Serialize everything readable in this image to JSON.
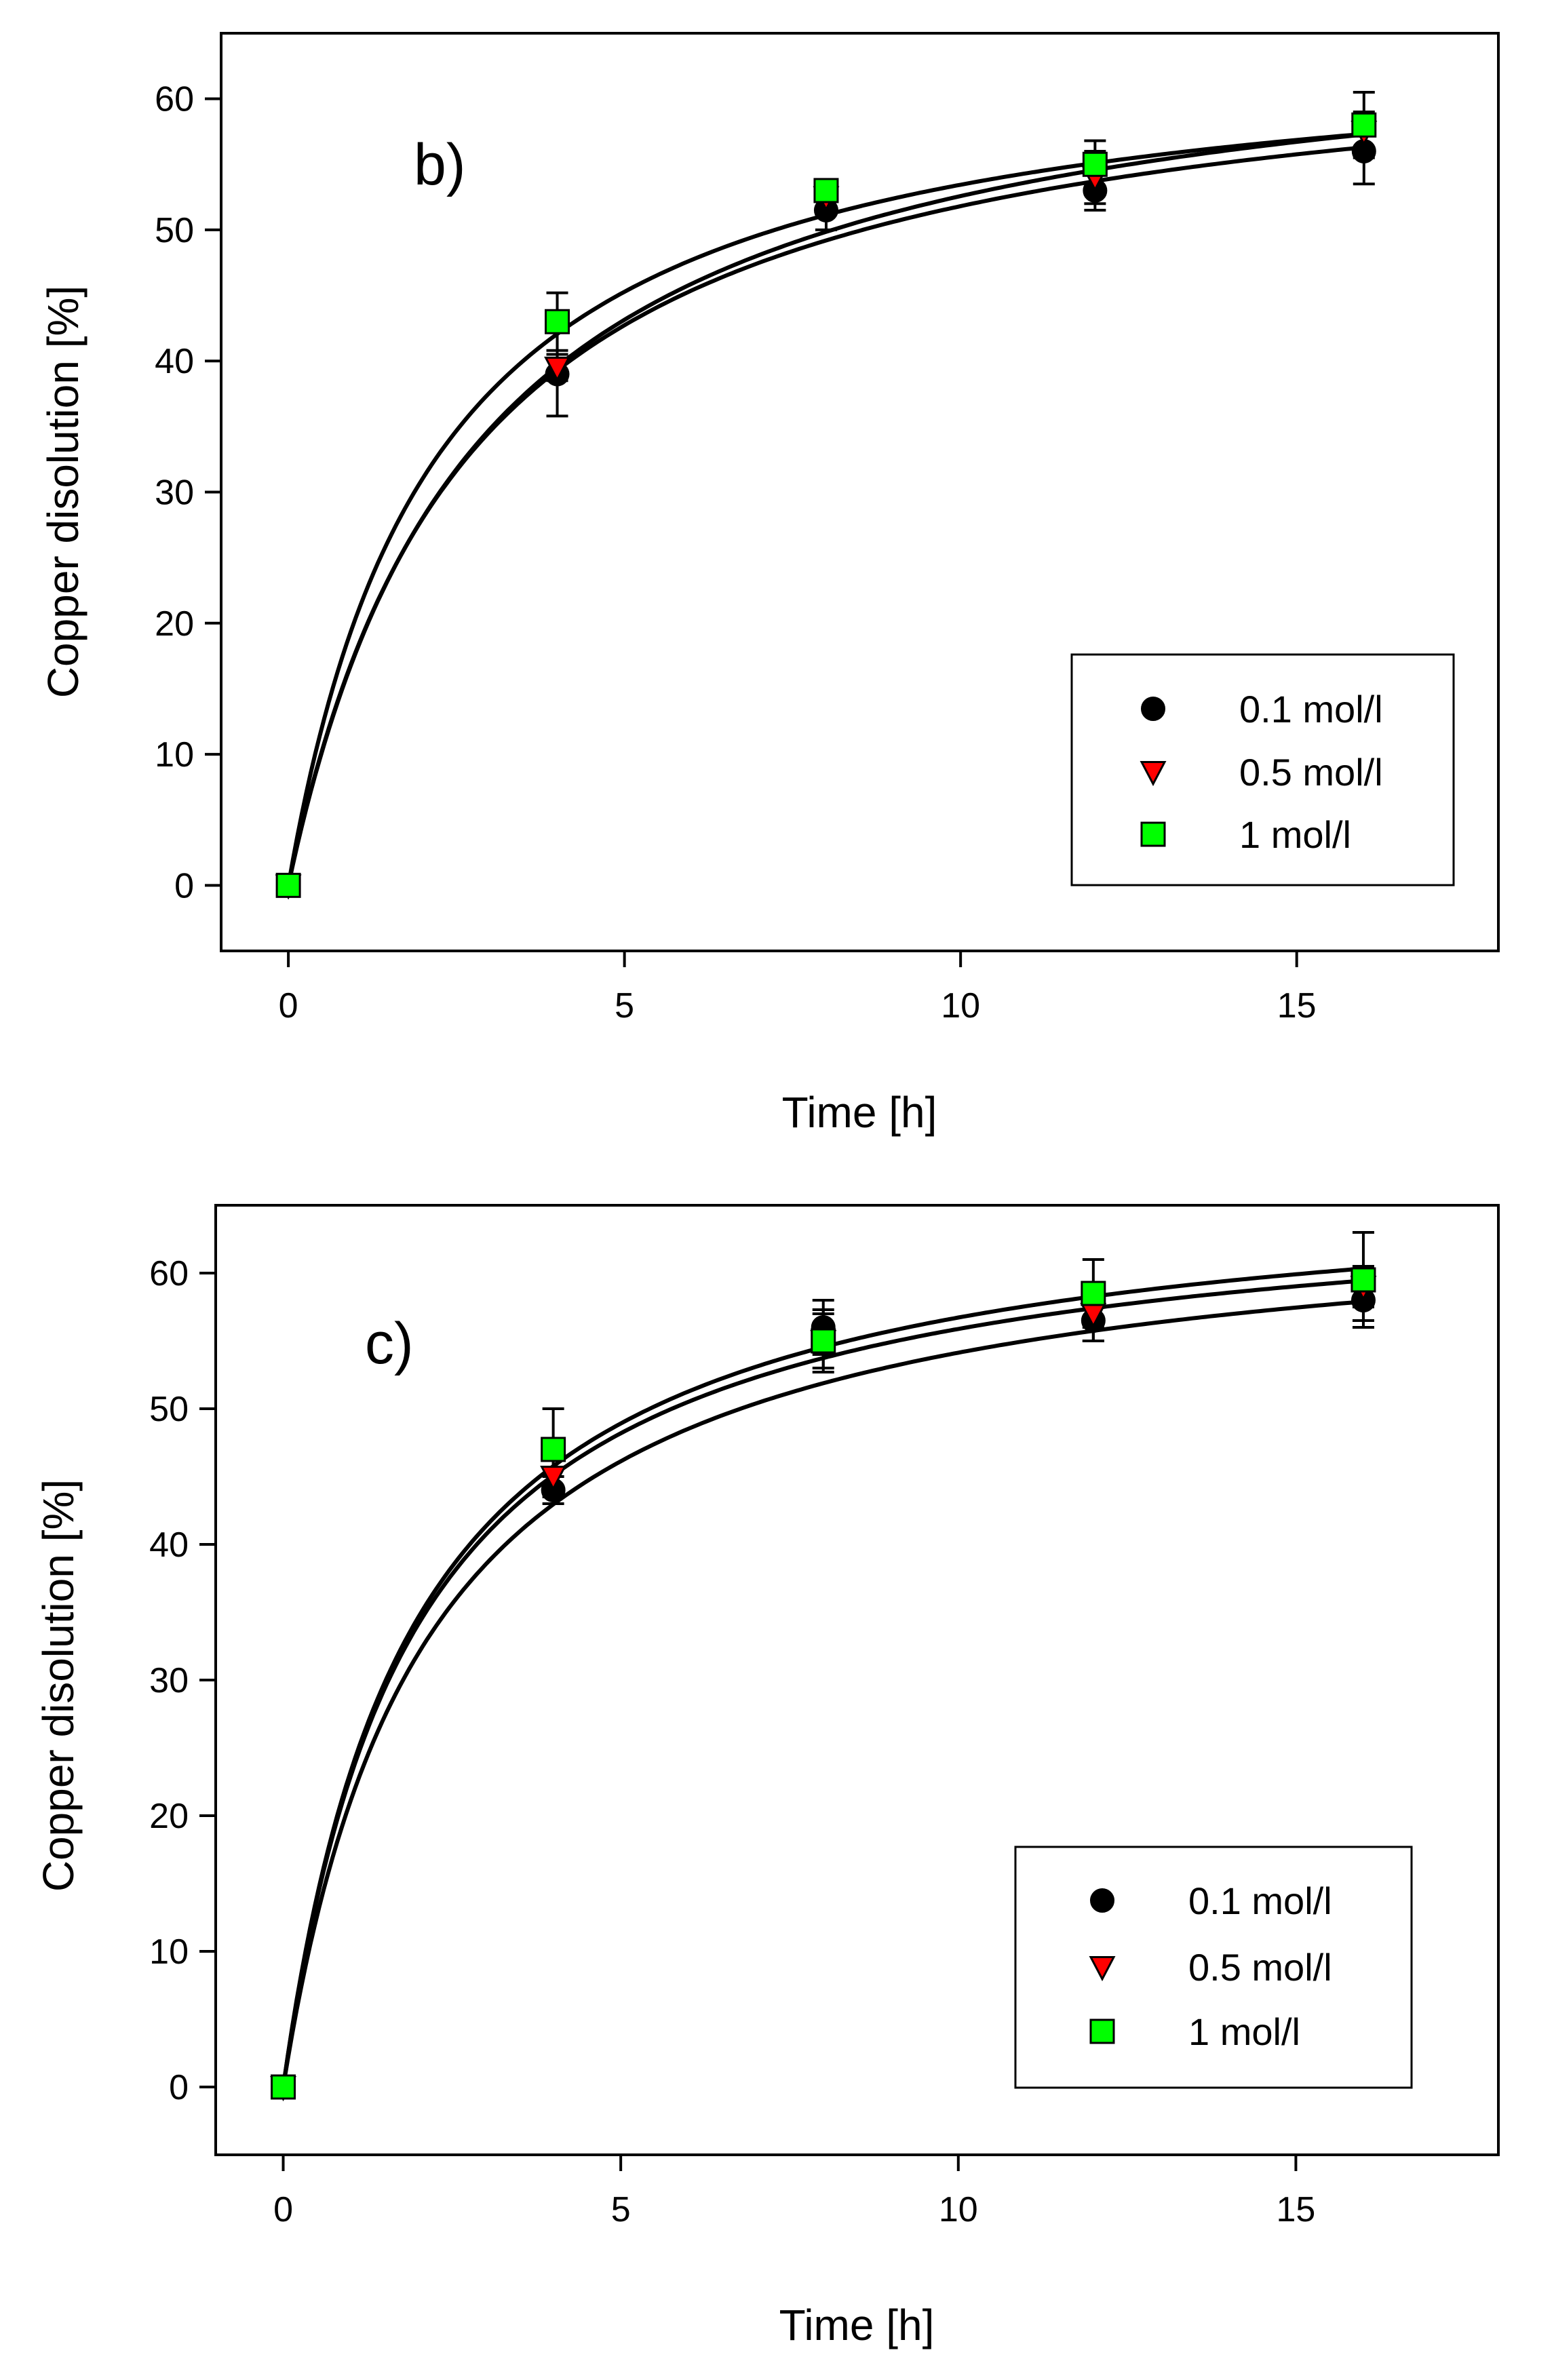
{
  "chart_data": [
    {
      "type": "scatter",
      "panel_label": "b)",
      "xlabel": "Time [h]",
      "ylabel": "Copper disolution [%]",
      "xlim": [
        -1,
        18
      ],
      "ylim": [
        -5,
        65
      ],
      "xticks": [
        0,
        5,
        10,
        15
      ],
      "yticks": [
        0,
        10,
        20,
        30,
        40,
        50,
        60
      ],
      "grid": false,
      "legend_position": "lower-right",
      "series": [
        {
          "name": "0.1 mol/l",
          "marker": "circle",
          "color": "#000000",
          "x": [
            0,
            4,
            8,
            12,
            16
          ],
          "y": [
            0,
            39,
            51.5,
            53,
            56
          ],
          "err": [
            0,
            3.2,
            1.5,
            1.5,
            2.5
          ],
          "fit": {
            "a": 65.8,
            "b": 2.7
          }
        },
        {
          "name": "0.5 mol/l",
          "marker": "triangle-down",
          "color": "#ff0000",
          "x": [
            0,
            4,
            8,
            12,
            16
          ],
          "y": [
            0,
            39.5,
            52.5,
            54,
            57.5
          ],
          "err": [
            0,
            1.0,
            1.0,
            2.0,
            1.5
          ],
          "fit": {
            "a": 67.3,
            "b": 2.8
          }
        },
        {
          "name": "1 mol/l",
          "marker": "square",
          "color": "#00ff00",
          "x": [
            0,
            4,
            8,
            12,
            16
          ],
          "y": [
            0,
            43,
            53,
            55,
            58
          ],
          "err": [
            0,
            2.2,
            0.8,
            1.8,
            2.5
          ],
          "fit": {
            "a": 65.2,
            "b": 2.2
          }
        }
      ]
    },
    {
      "type": "scatter",
      "panel_label": "c)",
      "xlabel": "Time [h]",
      "ylabel": "Copper disolution [%]",
      "xlim": [
        -1,
        18
      ],
      "ylim": [
        -5,
        65
      ],
      "xticks": [
        0,
        5,
        10,
        15
      ],
      "yticks": [
        0,
        10,
        20,
        30,
        40,
        50,
        60
      ],
      "grid": false,
      "legend_position": "lower-right",
      "series": [
        {
          "name": "0.1 mol/l",
          "marker": "circle",
          "color": "#000000",
          "x": [
            0,
            4,
            8,
            12,
            16
          ],
          "y": [
            0,
            44,
            56,
            56.5,
            58
          ],
          "err": [
            0,
            1.0,
            2.0,
            1.5,
            1.5
          ],
          "fit": {
            "a": 65.5,
            "b": 2.1
          }
        },
        {
          "name": "0.5 mol/l",
          "marker": "triangle-down",
          "color": "#ff0000",
          "x": [
            0,
            4,
            8,
            12,
            16
          ],
          "y": [
            0,
            45,
            55,
            57,
            59
          ],
          "err": [
            0,
            1.5,
            2.0,
            2.0,
            1.5
          ],
          "fit": {
            "a": 66.5,
            "b": 1.9
          }
        },
        {
          "name": "1 mol/l",
          "marker": "square",
          "color": "#00ff00",
          "x": [
            0,
            4,
            8,
            12,
            16
          ],
          "y": [
            0,
            47,
            55,
            58.5,
            59.5
          ],
          "err": [
            0,
            3.0,
            2.3,
            2.5,
            3.5
          ],
          "fit": {
            "a": 67.5,
            "b": 1.9
          }
        }
      ]
    }
  ]
}
